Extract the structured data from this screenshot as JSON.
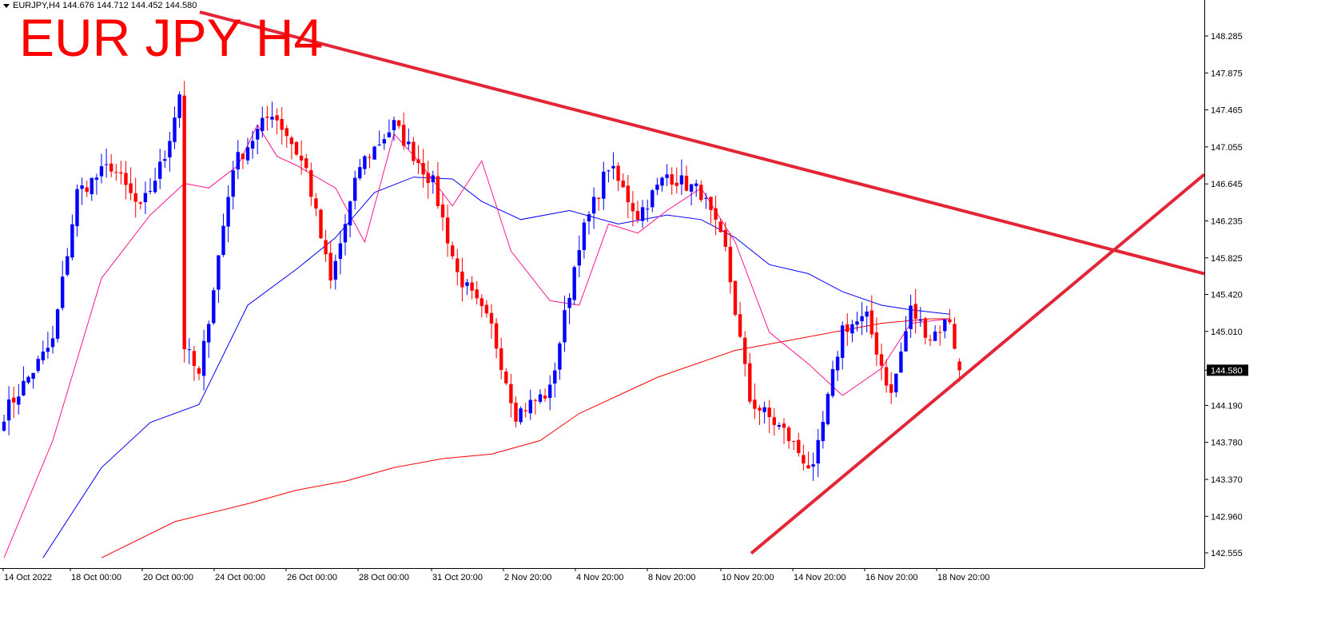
{
  "header": {
    "symbol_line": "EURJPY,H4  144.676 144.712 144.452 144.580",
    "overlay_title": "EUR JPY H4"
  },
  "colors": {
    "bull": "#0000ff",
    "bear": "#ff0000",
    "ma_fast": "#ff1493",
    "ma_mid": "#0000ff",
    "ma_slow": "#ff0000",
    "trendline": "#e32636"
  },
  "chart_data": {
    "type": "candlestick",
    "symbol": "EURJPY",
    "timeframe": "H4",
    "ohlc_header": {
      "open": 144.676,
      "high": 144.712,
      "low": 144.452,
      "close": 144.58
    },
    "current_price": "144.580",
    "ylim": [
      142.5,
      148.7
    ],
    "ytick_labels": [
      "148.285",
      "147.875",
      "147.465",
      "147.055",
      "146.645",
      "146.235",
      "145.825",
      "145.420",
      "145.010",
      "144.580",
      "144.190",
      "143.780",
      "143.370",
      "142.960",
      "142.555"
    ],
    "xtick_labels": [
      "14 Oct 2022",
      "18 Oct 00:00",
      "20 Oct 00:00",
      "24 Oct 00:00",
      "26 Oct 00:00",
      "28 Oct 00:00",
      "31 Oct 20:00",
      "2 Nov 20:00",
      "4 Nov 20:00",
      "8 Nov 20:00",
      "10 Nov 20:00",
      "14 Nov 20:00",
      "16 Nov 20:00",
      "18 Nov 20:00"
    ],
    "bar_count": 197,
    "key_closes": [
      [
        0,
        144.1
      ],
      [
        10,
        144.9
      ],
      [
        15,
        146.55
      ],
      [
        22,
        146.85
      ],
      [
        28,
        146.35
      ],
      [
        33,
        146.95
      ],
      [
        36,
        147.65
      ],
      [
        37,
        144.85
      ],
      [
        40,
        144.5
      ],
      [
        47,
        146.85
      ],
      [
        55,
        147.45
      ],
      [
        58,
        147.2
      ],
      [
        62,
        146.8
      ],
      [
        67,
        145.55
      ],
      [
        73,
        146.85
      ],
      [
        80,
        147.3
      ],
      [
        88,
        146.65
      ],
      [
        93,
        145.65
      ],
      [
        100,
        145.05
      ],
      [
        105,
        144.1
      ],
      [
        112,
        144.35
      ],
      [
        118,
        146.0
      ],
      [
        124,
        146.85
      ],
      [
        130,
        146.3
      ],
      [
        136,
        146.75
      ],
      [
        143,
        146.55
      ],
      [
        148,
        145.9
      ],
      [
        153,
        144.25
      ],
      [
        160,
        143.9
      ],
      [
        166,
        143.45
      ],
      [
        172,
        145.05
      ],
      [
        177,
        145.15
      ],
      [
        182,
        144.3
      ],
      [
        186,
        145.25
      ],
      [
        190,
        144.95
      ],
      [
        194,
        145.15
      ],
      [
        196,
        144.58
      ]
    ],
    "ma_fast_points": [
      [
        0,
        142.5
      ],
      [
        10,
        143.8
      ],
      [
        20,
        145.6
      ],
      [
        30,
        146.3
      ],
      [
        37,
        146.65
      ],
      [
        42,
        146.6
      ],
      [
        48,
        146.85
      ],
      [
        52,
        147.3
      ],
      [
        56,
        146.95
      ],
      [
        60,
        146.85
      ],
      [
        68,
        146.6
      ],
      [
        74,
        146.0
      ],
      [
        80,
        147.2
      ],
      [
        85,
        146.9
      ],
      [
        92,
        146.4
      ],
      [
        98,
        146.9
      ],
      [
        104,
        145.9
      ],
      [
        112,
        145.35
      ],
      [
        118,
        145.3
      ],
      [
        124,
        146.2
      ],
      [
        130,
        146.1
      ],
      [
        136,
        146.35
      ],
      [
        143,
        146.6
      ],
      [
        150,
        146.0
      ],
      [
        157,
        145.0
      ],
      [
        165,
        144.65
      ],
      [
        172,
        144.3
      ],
      [
        180,
        144.6
      ],
      [
        186,
        145.1
      ],
      [
        194,
        145.15
      ]
    ],
    "ma_mid_points": [
      [
        8,
        142.5
      ],
      [
        20,
        143.5
      ],
      [
        30,
        144.0
      ],
      [
        40,
        144.2
      ],
      [
        50,
        145.3
      ],
      [
        60,
        145.7
      ],
      [
        68,
        146.05
      ],
      [
        76,
        146.55
      ],
      [
        84,
        146.72
      ],
      [
        92,
        146.7
      ],
      [
        98,
        146.45
      ],
      [
        106,
        146.25
      ],
      [
        116,
        146.35
      ],
      [
        126,
        146.2
      ],
      [
        136,
        146.3
      ],
      [
        143,
        146.25
      ],
      [
        150,
        146.05
      ],
      [
        157,
        145.75
      ],
      [
        165,
        145.65
      ],
      [
        172,
        145.45
      ],
      [
        180,
        145.3
      ],
      [
        186,
        145.25
      ],
      [
        194,
        145.2
      ]
    ],
    "ma_slow_points": [
      [
        20,
        142.5
      ],
      [
        35,
        142.9
      ],
      [
        50,
        143.1
      ],
      [
        60,
        143.25
      ],
      [
        70,
        143.35
      ],
      [
        80,
        143.5
      ],
      [
        90,
        143.6
      ],
      [
        100,
        143.65
      ],
      [
        110,
        143.8
      ],
      [
        118,
        144.1
      ],
      [
        126,
        144.3
      ],
      [
        134,
        144.5
      ],
      [
        142,
        144.65
      ],
      [
        150,
        144.8
      ],
      [
        160,
        144.9
      ],
      [
        170,
        145.0
      ],
      [
        180,
        145.1
      ],
      [
        190,
        145.15
      ],
      [
        194,
        145.15
      ]
    ],
    "trendlines": [
      {
        "name": "resistance",
        "from": [
          "20 Oct",
          148.55
        ],
        "to": [
          "beyond 18 Nov",
          145.65
        ]
      },
      {
        "name": "support",
        "from": [
          "10 Nov",
          142.55
        ],
        "to": [
          "beyond 18 Nov",
          146.75
        ]
      }
    ]
  }
}
